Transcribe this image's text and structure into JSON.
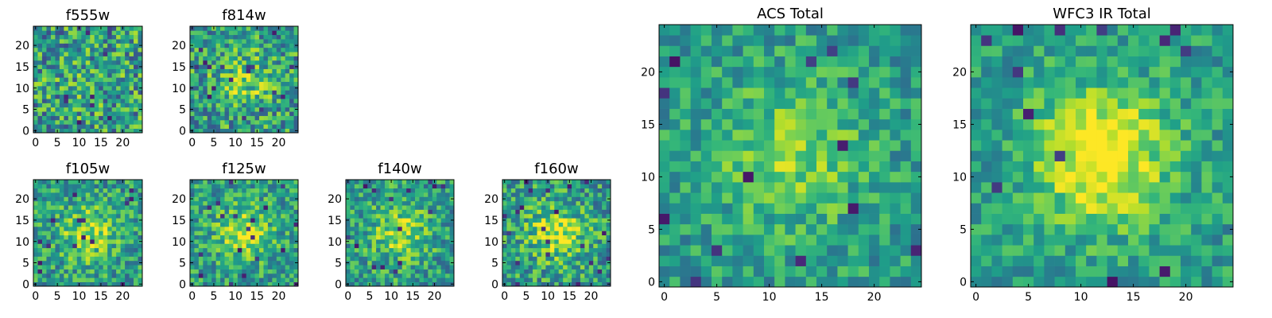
{
  "chart_data": [
    {
      "type": "heatmap",
      "title": "f555w",
      "grid_size": 25,
      "x_ticks": [
        "0",
        "5",
        "10",
        "15",
        "20"
      ],
      "y_ticks": [
        "0",
        "5",
        "10",
        "15",
        "20"
      ],
      "value_range": [
        0,
        1
      ],
      "blob_strength": 0.05,
      "noise": 0.55,
      "seed": 11
    },
    {
      "type": "heatmap",
      "title": "f814w",
      "grid_size": 25,
      "x_ticks": [
        "0",
        "5",
        "10",
        "15",
        "20"
      ],
      "y_ticks": [
        "0",
        "5",
        "10",
        "15",
        "20"
      ],
      "value_range": [
        0,
        1
      ],
      "blob_strength": 0.25,
      "noise": 0.5,
      "seed": 23
    },
    {
      "type": "heatmap",
      "title": "f105w",
      "grid_size": 25,
      "x_ticks": [
        "0",
        "5",
        "10",
        "15",
        "20"
      ],
      "y_ticks": [
        "0",
        "5",
        "10",
        "15",
        "20"
      ],
      "value_range": [
        0,
        1
      ],
      "blob_strength": 0.3,
      "noise": 0.42,
      "seed": 37
    },
    {
      "type": "heatmap",
      "title": "f125w",
      "grid_size": 25,
      "x_ticks": [
        "0",
        "5",
        "10",
        "15",
        "20"
      ],
      "y_ticks": [
        "0",
        "5",
        "10",
        "15",
        "20"
      ],
      "value_range": [
        0,
        1
      ],
      "blob_strength": 0.32,
      "noise": 0.4,
      "seed": 41
    },
    {
      "type": "heatmap",
      "title": "f140w",
      "grid_size": 25,
      "x_ticks": [
        "0",
        "5",
        "10",
        "15",
        "20"
      ],
      "y_ticks": [
        "0",
        "5",
        "10",
        "15",
        "20"
      ],
      "value_range": [
        0,
        1
      ],
      "blob_strength": 0.3,
      "noise": 0.42,
      "seed": 53
    },
    {
      "type": "heatmap",
      "title": "f160w",
      "grid_size": 25,
      "x_ticks": [
        "0",
        "5",
        "10",
        "15",
        "20"
      ],
      "y_ticks": [
        "0",
        "5",
        "10",
        "15",
        "20"
      ],
      "value_range": [
        0,
        1
      ],
      "blob_strength": 0.35,
      "noise": 0.45,
      "seed": 67
    },
    {
      "type": "heatmap",
      "title": "ACS Total",
      "grid_size": 25,
      "x_ticks": [
        "0",
        "5",
        "10",
        "15",
        "20"
      ],
      "y_ticks": [
        "0",
        "5",
        "10",
        "15",
        "20"
      ],
      "value_range": [
        0,
        1
      ],
      "blob_strength": 0.28,
      "noise": 0.32,
      "seed": 79
    },
    {
      "type": "heatmap",
      "title": "WFC3 IR Total",
      "grid_size": 25,
      "x_ticks": [
        "0",
        "5",
        "10",
        "15",
        "20"
      ],
      "y_ticks": [
        "0",
        "5",
        "10",
        "15",
        "20"
      ],
      "value_range": [
        0,
        1
      ],
      "blob_strength": 0.5,
      "noise": 0.3,
      "seed": 97
    }
  ],
  "colormap": {
    "name": "viridis",
    "stops": [
      "#440154",
      "#482878",
      "#3e4989",
      "#31688e",
      "#26828e",
      "#1f9e89",
      "#35b779",
      "#6ece58",
      "#b5de2b",
      "#fde725"
    ]
  }
}
